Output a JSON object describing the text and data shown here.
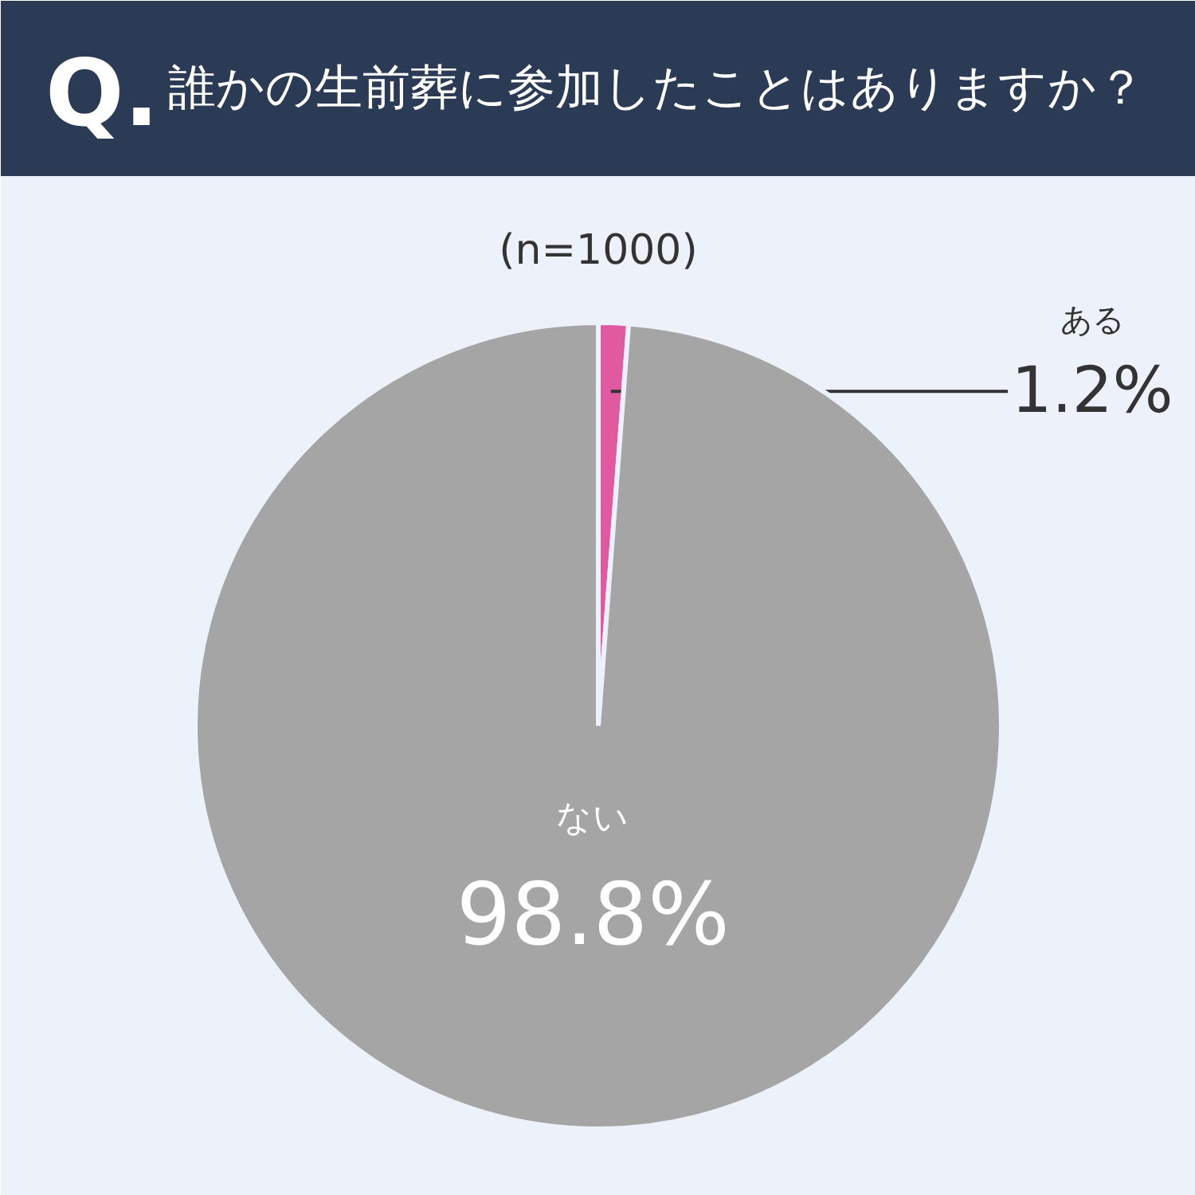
{
  "chart_data": {
    "type": "pie",
    "title": "誰かの生前葬に参加したことはありますか？",
    "subtitle": "(n=1000)",
    "annotations": [
      "Q."
    ],
    "categories": [
      "ある",
      "ない"
    ],
    "values": [
      1.2,
      98.8
    ],
    "colors": [
      "#e05aa0",
      "#a5a5a5"
    ],
    "value_labels": [
      "1.2%",
      "98.8%"
    ]
  }
}
